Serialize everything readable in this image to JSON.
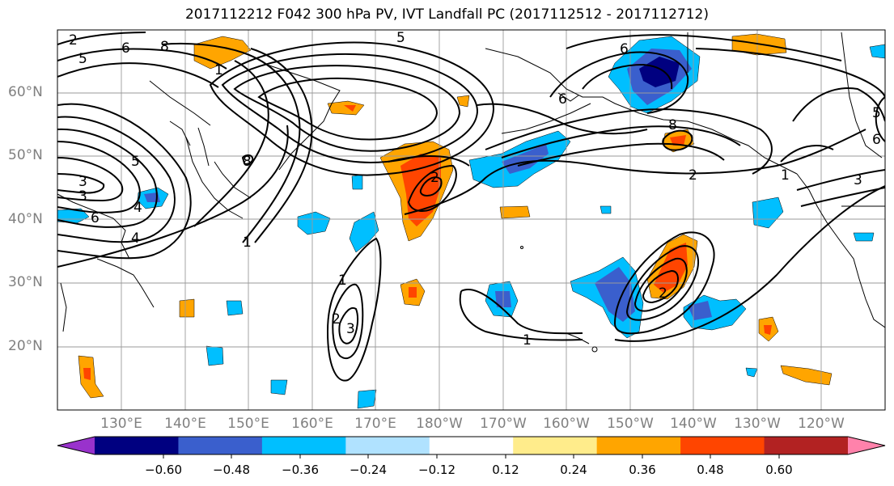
{
  "title": "2017112212 F042 300 hPa PV, IVT Landfall PC (2017112512 - 2017112712)",
  "lat_labels": [
    "60°N",
    "50°N",
    "40°N",
    "30°N",
    "20°N"
  ],
  "lon_labels": [
    "130°E",
    "140°E",
    "150°E",
    "160°E",
    "170°E",
    "180°W",
    "170°W",
    "160°W",
    "150°W",
    "140°W",
    "130°W",
    "120°W"
  ],
  "colorbar": {
    "ticks": [
      "−0.60",
      "−0.48",
      "−0.36",
      "−0.24",
      "−0.12",
      "0.12",
      "0.24",
      "0.36",
      "0.48",
      "0.60"
    ],
    "colors": [
      "#9932cc",
      "#000080",
      "#3a5fcd",
      "#00bfff",
      "#b0e2ff",
      "#ffffff",
      "#ffec8b",
      "#ffa500",
      "#ff4500",
      "#b22222",
      "#ff82ab"
    ]
  },
  "contour_labels": [
    "2",
    "5",
    "6",
    "8",
    "3",
    "3",
    "5",
    "4",
    "6",
    "4",
    "1",
    "1",
    "1",
    "2",
    "3",
    "2",
    "1",
    "2",
    "8",
    "5",
    "6",
    "1",
    "3",
    "6",
    "8",
    "6",
    "5",
    "2"
  ]
}
